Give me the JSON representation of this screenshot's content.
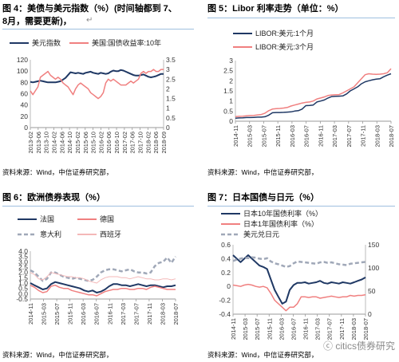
{
  "panels": [
    {
      "title": "图 4：美债与美元指数（%）(时间轴都到 7、8月，需要更新)，",
      "title_line1": "图 4：美债与美元指数（%）(时间轴都到 7、",
      "title_line2": "8月，需要更新)，",
      "source": "资料来源：Wind，中信证券研究部，"
    },
    {
      "title": "图 5：Libor 利率走势（单位：%）",
      "source": "资料来源：Wind，中信证券研究部，"
    },
    {
      "title": "图 6：欧洲债券表现（%）",
      "source": "资料来源：Wind，中信证券研究部，"
    },
    {
      "title": "图 7：日本国债与日元（%）",
      "source": "资料来源：Wind，中信证券研究部，"
    }
  ],
  "watermark": "ⓒ citics债券研究",
  "chart_data": [
    {
      "type": "line",
      "legend_position": "top",
      "grid": false,
      "x_ticks": [
        "2013-02",
        "2013-06",
        "2013-10",
        "2014-02",
        "2014-06",
        "2014-10",
        "2015-02",
        "2015-06",
        "2015-10",
        "2016-02",
        "2016-06",
        "2016-10",
        "2017-02",
        "2017-06",
        "2017-10",
        "2018-02",
        "2018-06",
        "2018-09"
      ],
      "ylim_left": [
        0,
        120
      ],
      "yticks_left": [
        "0",
        "20",
        "40",
        "60",
        "80",
        "100",
        "120"
      ],
      "ylim_right": [
        0,
        3.5
      ],
      "yticks_right": [
        "0",
        "0.5",
        "1",
        "1.5",
        "2",
        "2.5",
        "3",
        "3.5"
      ],
      "series": [
        {
          "name": "美元指数",
          "axis": "left",
          "color": "#1f3864",
          "width": 2,
          "values": [
            81,
            80,
            81,
            82,
            83,
            82,
            81,
            80,
            80,
            80,
            80,
            81,
            82,
            85,
            88,
            93,
            98,
            97,
            96,
            97,
            96,
            95,
            97,
            98,
            99,
            97,
            96,
            95,
            97,
            96,
            95,
            96,
            99,
            101,
            100,
            100,
            102,
            101,
            99,
            97,
            95,
            93,
            92,
            92,
            93,
            94,
            92,
            90,
            89,
            90,
            91,
            93,
            95,
            95
          ]
        },
        {
          "name": "美国:国债收益率:10年",
          "axis": "right",
          "color": "#f08080",
          "width": 1.5,
          "values": [
            1.9,
            1.7,
            1.9,
            2.1,
            2.6,
            2.7,
            2.8,
            2.9,
            2.7,
            2.6,
            2.5,
            2.6,
            2.5,
            2.3,
            2.2,
            2.1,
            1.9,
            1.7,
            2.0,
            2.2,
            2.3,
            2.2,
            2.1,
            2.0,
            1.8,
            1.7,
            1.6,
            1.5,
            1.6,
            1.8,
            2.3,
            2.5,
            2.4,
            2.5,
            2.4,
            2.3,
            2.2,
            2.2,
            2.2,
            2.3,
            2.4,
            2.3,
            2.4,
            2.5,
            2.8,
            2.9,
            2.8,
            2.9,
            2.9,
            3.0,
            2.9,
            2.9,
            3.0,
            3.0
          ]
        }
      ]
    },
    {
      "type": "line",
      "legend_position": "top-left",
      "grid": false,
      "x_ticks": [
        "2014-11",
        "2015-03",
        "2015-07",
        "2015-11",
        "2016-03",
        "2016-07",
        "2016-11",
        "2017-03",
        "2017-07",
        "2017-11",
        "2018-03",
        "2018-07"
      ],
      "ylim": [
        0,
        3
      ],
      "yticks": [
        "0",
        "0.5",
        "1",
        "1.5",
        "2",
        "2.5",
        "3"
      ],
      "series": [
        {
          "name": "LIBOR:美元:1个月",
          "color": "#1f3864",
          "width": 1.5,
          "values": [
            0.15,
            0.16,
            0.17,
            0.18,
            0.18,
            0.19,
            0.2,
            0.2,
            0.22,
            0.3,
            0.42,
            0.43,
            0.43,
            0.44,
            0.45,
            0.46,
            0.5,
            0.52,
            0.6,
            0.77,
            0.78,
            0.8,
            0.95,
            1.0,
            1.05,
            1.15,
            1.22,
            1.23,
            1.24,
            1.25,
            1.35,
            1.5,
            1.6,
            1.7,
            1.85,
            1.95,
            2.0,
            2.05,
            2.08,
            2.1,
            2.2,
            2.28,
            2.35
          ]
        },
        {
          "name": "LIBOR:美元:3个月",
          "color": "#f08080",
          "width": 1.5,
          "values": [
            0.23,
            0.24,
            0.25,
            0.27,
            0.28,
            0.29,
            0.31,
            0.33,
            0.4,
            0.52,
            0.6,
            0.62,
            0.63,
            0.65,
            0.68,
            0.75,
            0.8,
            0.85,
            0.9,
            0.93,
            0.95,
            1.0,
            1.1,
            1.15,
            1.2,
            1.27,
            1.3,
            1.31,
            1.32,
            1.4,
            1.5,
            1.6,
            1.7,
            1.9,
            2.1,
            2.3,
            2.35,
            2.33,
            2.32,
            2.33,
            2.35,
            2.4,
            2.6
          ]
        }
      ]
    },
    {
      "type": "line",
      "legend_position": "top",
      "grid": false,
      "x_ticks": [
        "2014-11",
        "2015-03",
        "2015-07",
        "2015-11",
        "2016-03",
        "2016-07",
        "2016-11",
        "2017-03",
        "2017-07",
        "2017-11",
        "2018-03",
        "2018-07"
      ],
      "ylim": [
        -0.5,
        4.0
      ],
      "yticks": [
        "-0.5",
        "0.0",
        "0.5",
        "1.0",
        "1.5",
        "2.0",
        "2.5",
        "3.0",
        "3.5",
        "4.0"
      ],
      "series": [
        {
          "name": "法国",
          "color": "#1f3864",
          "width": 2,
          "dash": "",
          "values": [
            1.0,
            0.8,
            0.6,
            0.4,
            0.5,
            0.9,
            1.1,
            1.0,
            0.9,
            0.8,
            0.7,
            0.6,
            0.5,
            0.3,
            0.2,
            0.3,
            0.1,
            0.2,
            0.4,
            0.7,
            0.9,
            0.9,
            0.8,
            0.8,
            0.7,
            0.8,
            0.9,
            0.8,
            0.7,
            0.8,
            0.8,
            0.7,
            0.6,
            0.7,
            0.7,
            0.8
          ]
        },
        {
          "name": "德国",
          "color": "#f08080",
          "width": 1.5,
          "dash": "",
          "values": [
            0.8,
            0.6,
            0.3,
            0.1,
            0.2,
            0.7,
            0.8,
            0.6,
            0.5,
            0.5,
            0.3,
            0.2,
            0.1,
            0.0,
            -0.1,
            -0.1,
            -0.2,
            0.0,
            0.2,
            0.3,
            0.4,
            0.4,
            0.5,
            0.5,
            0.4,
            0.4,
            0.5,
            0.5,
            0.4,
            0.6,
            0.7,
            0.6,
            0.5,
            0.4,
            0.4,
            0.4
          ]
        },
        {
          "name": "意大利",
          "color": "#a0a8b8",
          "width": 2.5,
          "dash": "5,3",
          "values": [
            2.2,
            2.0,
            1.6,
            1.2,
            1.4,
            2.0,
            2.0,
            1.8,
            1.6,
            1.5,
            1.4,
            1.5,
            1.4,
            1.3,
            1.2,
            1.3,
            1.6,
            2.0,
            2.2,
            2.3,
            2.3,
            2.2,
            2.1,
            2.2,
            2.3,
            2.1,
            2.0,
            2.0,
            1.9,
            2.0,
            2.6,
            2.9,
            3.0,
            3.4,
            2.9,
            3.5
          ]
        },
        {
          "name": "西班牙",
          "color": "#f4b8b8",
          "width": 1,
          "dash": "",
          "values": [
            2.0,
            1.8,
            1.4,
            1.3,
            1.6,
            2.0,
            1.9,
            1.8,
            1.7,
            1.6,
            1.6,
            1.5,
            1.5,
            1.4,
            1.2,
            1.1,
            1.0,
            1.3,
            1.5,
            1.6,
            1.6,
            1.6,
            1.5,
            1.5,
            1.4,
            1.5,
            1.6,
            1.5,
            1.4,
            1.4,
            1.3,
            1.3,
            1.4,
            1.4,
            1.3,
            1.4
          ]
        }
      ]
    },
    {
      "type": "line",
      "legend_position": "top-left",
      "grid": false,
      "x_ticks": [
        "2014-11",
        "2015-03",
        "2015-07",
        "2015-11",
        "2016-03",
        "2016-07",
        "2016-11",
        "2017-03",
        "2017-07",
        "2017-11",
        "2018-03",
        "2018-07"
      ],
      "ylim_left": [
        -0.4,
        0.6
      ],
      "yticks_left": [
        "-0.4",
        "-0.2",
        "0",
        "0.2",
        "0.4",
        "0.6"
      ],
      "ylim_right": [
        0,
        150
      ],
      "yticks_right": [
        "0",
        "50",
        "100",
        "150"
      ],
      "series": [
        {
          "name": "日本10年国债利率（%）",
          "axis": "left",
          "color": "#1f3864",
          "width": 2,
          "dash": "",
          "values": [
            0.45,
            0.4,
            0.35,
            0.4,
            0.45,
            0.4,
            0.35,
            0.3,
            0.28,
            0.25,
            0.1,
            -0.05,
            -0.15,
            -0.25,
            -0.22,
            -0.05,
            0.02,
            0.05,
            0.05,
            0.06,
            0.04,
            0.05,
            0.06,
            0.08,
            0.05,
            0.04,
            0.06,
            0.05,
            0.04,
            0.06,
            0.05,
            0.04,
            0.06,
            0.08,
            0.1,
            0.13
          ]
        },
        {
          "name": "日本1年国债利率（%）",
          "axis": "left",
          "color": "#f08080",
          "width": 1.5,
          "dash": "",
          "values": [
            0.02,
            0.01,
            0.0,
            0.02,
            0.03,
            0.02,
            0.0,
            -0.01,
            0.0,
            -0.02,
            -0.1,
            -0.2,
            -0.25,
            -0.3,
            -0.35,
            -0.3,
            -0.3,
            -0.25,
            -0.15,
            -0.15,
            -0.16,
            -0.15,
            -0.15,
            -0.17,
            -0.16,
            -0.15,
            -0.14,
            -0.15,
            -0.16,
            -0.15,
            -0.15,
            -0.13,
            -0.14,
            -0.13,
            -0.13,
            -0.12
          ]
        },
        {
          "name": "美元兑日元",
          "axis": "right",
          "color": "#a0a8b8",
          "width": 2.5,
          "dash": "5,3",
          "values": [
            115,
            118,
            120,
            122,
            121,
            123,
            122,
            120,
            119,
            121,
            114,
            110,
            108,
            105,
            102,
            104,
            110,
            114,
            113,
            112,
            111,
            110,
            109,
            112,
            113,
            111,
            112,
            110,
            108,
            107,
            106,
            109,
            110,
            111,
            112,
            113
          ]
        }
      ]
    }
  ]
}
